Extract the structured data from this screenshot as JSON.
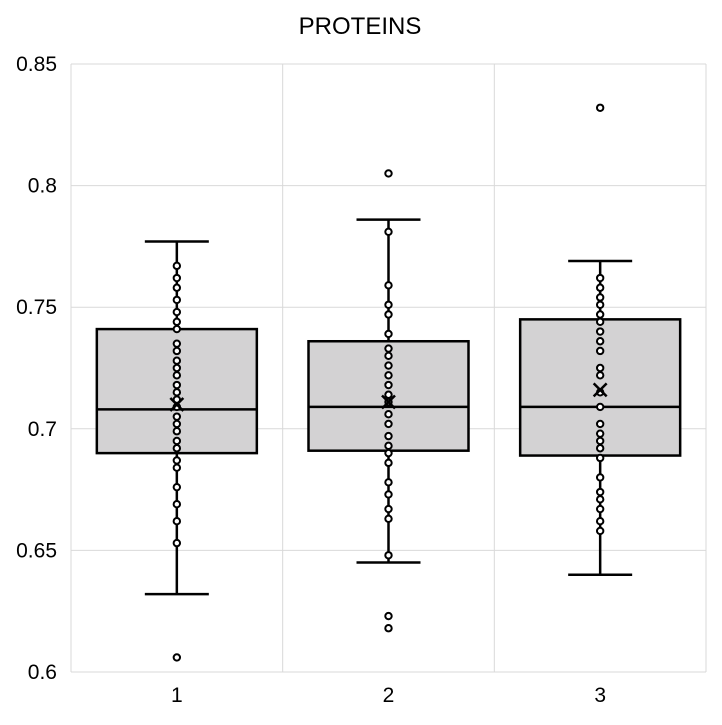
{
  "chart_data": {
    "type": "box",
    "title": "PROTEINS",
    "xlabel": "",
    "ylabel": "",
    "categories": [
      "1",
      "2",
      "3"
    ],
    "y_ticks": [
      "0.6",
      "0.65",
      "0.7",
      "0.75",
      "0.8",
      "0.85"
    ],
    "ylim": [
      0.6,
      0.85
    ],
    "grid": true,
    "legend": "none",
    "box_fill": "#d3d2d3",
    "stroke_color": "#000000",
    "grid_color": "#d9d9d9",
    "boxes": [
      {
        "category": "1",
        "whisker_low": 0.632,
        "q1": 0.69,
        "median": 0.708,
        "q3": 0.741,
        "whisker_high": 0.777,
        "mean": 0.71,
        "points": [
          0.606,
          0.653,
          0.662,
          0.669,
          0.676,
          0.684,
          0.687,
          0.692,
          0.695,
          0.699,
          0.702,
          0.705,
          0.709,
          0.712,
          0.715,
          0.718,
          0.722,
          0.725,
          0.728,
          0.732,
          0.735,
          0.741,
          0.744,
          0.748,
          0.753,
          0.758,
          0.762,
          0.767
        ],
        "outliers": [
          0.606
        ]
      },
      {
        "category": "2",
        "whisker_low": 0.645,
        "q1": 0.691,
        "median": 0.709,
        "q3": 0.736,
        "whisker_high": 0.786,
        "mean": 0.711,
        "points": [
          0.618,
          0.623,
          0.648,
          0.663,
          0.667,
          0.673,
          0.678,
          0.686,
          0.69,
          0.693,
          0.697,
          0.702,
          0.706,
          0.711,
          0.714,
          0.718,
          0.722,
          0.726,
          0.73,
          0.733,
          0.739,
          0.747,
          0.751,
          0.759,
          0.781,
          0.805
        ],
        "outliers": [
          0.618,
          0.623,
          0.805
        ]
      },
      {
        "category": "3",
        "whisker_low": 0.64,
        "q1": 0.689,
        "median": 0.709,
        "q3": 0.745,
        "whisker_high": 0.769,
        "mean": 0.716,
        "points": [
          0.658,
          0.662,
          0.667,
          0.671,
          0.674,
          0.68,
          0.688,
          0.692,
          0.695,
          0.698,
          0.702,
          0.709,
          0.715,
          0.722,
          0.725,
          0.732,
          0.736,
          0.74,
          0.744,
          0.747,
          0.751,
          0.754,
          0.758,
          0.762,
          0.832
        ],
        "outliers": [
          0.832
        ]
      }
    ]
  }
}
